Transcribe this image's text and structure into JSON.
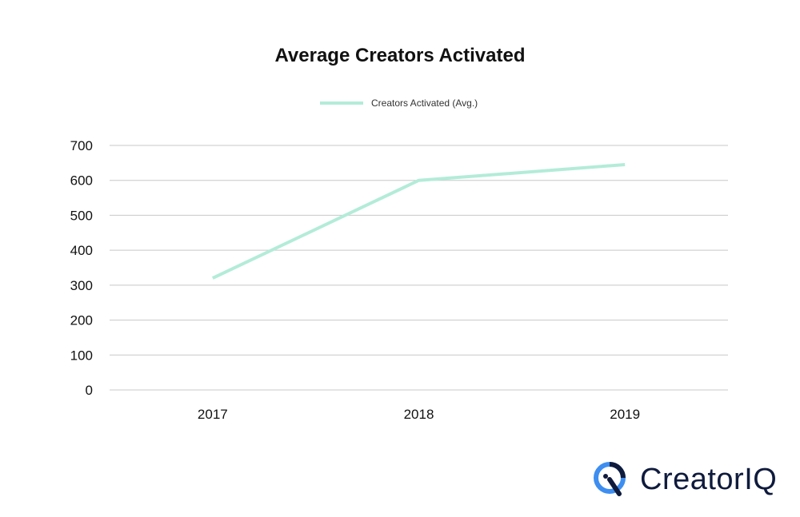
{
  "chart_data": {
    "type": "line",
    "title": "Average Creators Activated",
    "categories": [
      "2017",
      "2018",
      "2019"
    ],
    "series": [
      {
        "name": "Creators Activated (Avg.)",
        "values": [
          320,
          600,
          645
        ],
        "color": "#b3ecd9"
      }
    ],
    "ylim": [
      0,
      700
    ],
    "yticks": [
      0,
      100,
      200,
      300,
      400,
      500,
      600,
      700
    ],
    "xlabel": "",
    "ylabel": "",
    "grid": true,
    "legend": "top-center"
  },
  "logo": {
    "text": "CreatorIQ",
    "colors": {
      "blue": "#3d8ef0",
      "navy": "#0f1b3d"
    }
  }
}
